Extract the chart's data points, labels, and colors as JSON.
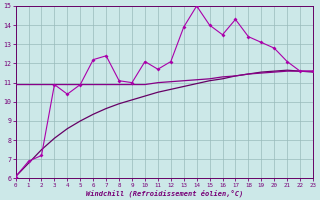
{
  "x": [
    0,
    1,
    2,
    3,
    4,
    5,
    6,
    7,
    8,
    9,
    10,
    11,
    12,
    13,
    14,
    15,
    16,
    17,
    18,
    19,
    20,
    21,
    22,
    23
  ],
  "line_main": [
    6.1,
    6.9,
    7.2,
    10.9,
    10.4,
    10.9,
    12.2,
    12.4,
    11.1,
    11.0,
    12.1,
    11.7,
    12.1,
    13.9,
    15.0,
    14.0,
    13.5,
    14.3,
    13.4,
    13.1,
    12.8,
    12.1,
    11.6,
    11.6
  ],
  "line_flat": [
    10.9,
    10.9,
    10.9,
    10.9,
    10.9,
    10.9,
    10.9,
    10.9,
    10.9,
    10.9,
    10.9,
    11.0,
    11.05,
    11.1,
    11.15,
    11.2,
    11.3,
    11.35,
    11.45,
    11.5,
    11.55,
    11.6,
    11.6,
    11.6
  ],
  "line_rising": [
    6.1,
    6.8,
    7.5,
    8.1,
    8.6,
    9.0,
    9.35,
    9.65,
    9.9,
    10.1,
    10.3,
    10.5,
    10.65,
    10.8,
    10.95,
    11.1,
    11.2,
    11.35,
    11.45,
    11.55,
    11.6,
    11.65,
    11.6,
    11.55
  ],
  "xlim": [
    0,
    23
  ],
  "ylim": [
    6,
    15
  ],
  "yticks": [
    6,
    7,
    8,
    9,
    10,
    11,
    12,
    13,
    14,
    15
  ],
  "xticks": [
    0,
    1,
    2,
    3,
    4,
    5,
    6,
    7,
    8,
    9,
    10,
    11,
    12,
    13,
    14,
    15,
    16,
    17,
    18,
    19,
    20,
    21,
    22,
    23
  ],
  "xlabel": "Windchill (Refroidissement éolien,°C)",
  "bg_color": "#cce8e8",
  "grid_color": "#99bbbb",
  "line_color_main": "#aa00aa",
  "line_color_flat": "#880088",
  "line_color_rising": "#660066",
  "tick_color": "#770077",
  "spine_color": "#660066"
}
